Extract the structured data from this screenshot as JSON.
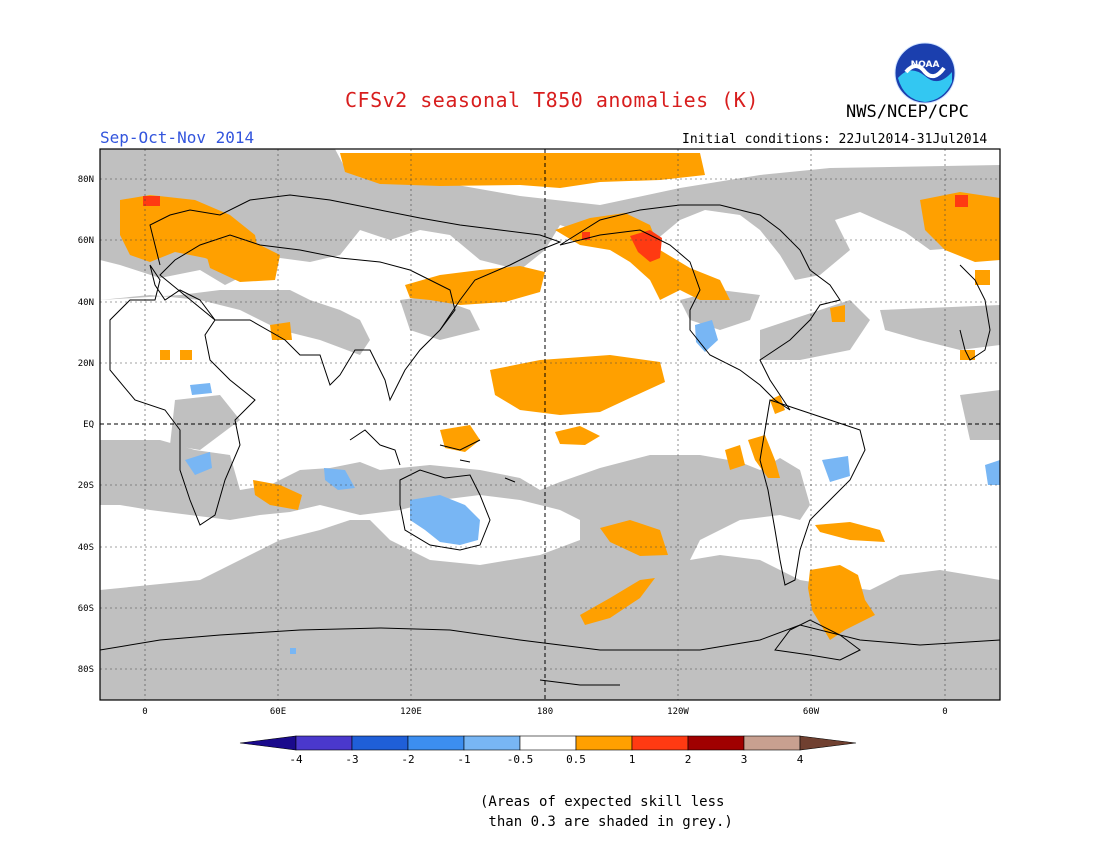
{
  "title": "CFSv2 seasonal T850 anomalies (K)",
  "season": "Sep-Oct-Nov 2014",
  "agency": "NWS/NCEP/CPC",
  "initial_conditions": "Initial conditions: 22Jul2014-31Jul2014",
  "logo_text": "NOAA",
  "note": "(Areas of expected skill less\n than 0.3 are shaded in grey.)",
  "map": {
    "lat_labels": [
      "80N",
      "60N",
      "40N",
      "20N",
      "EQ",
      "20S",
      "40S",
      "60S",
      "80S"
    ],
    "lon_labels": [
      "0",
      "60E",
      "120E",
      "180",
      "120W",
      "60W",
      "0"
    ]
  },
  "colorbar": {
    "labels": [
      "-4",
      "-3",
      "-2",
      "-1",
      "-0.5",
      "0.5",
      "1",
      "2",
      "3",
      "4"
    ],
    "colors": [
      "#1a0a8c",
      "#4a38cc",
      "#1f5fd8",
      "#3c8ef0",
      "#78b6f4",
      "#ffffff",
      "#ffa000",
      "#ff3a12",
      "#a00000",
      "#c8a090",
      "#704030"
    ]
  },
  "legend_colors": {
    "grey": "#c0c0c0",
    "orange": "#ffa000",
    "red": "#ff3a12",
    "light_blue": "#78b6f4"
  }
}
